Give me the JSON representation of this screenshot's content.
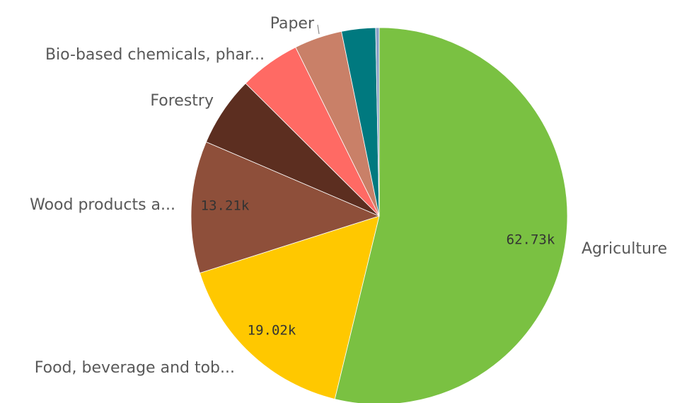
{
  "chart_data": {
    "type": "pie",
    "title": "",
    "start_angle_deg": 0,
    "direction": "clockwise",
    "slices": [
      {
        "name": "Agriculture",
        "value": 62730,
        "value_label": "62.73k",
        "color": "#7ac142"
      },
      {
        "name": "Food, beverage and tob...",
        "value": 19020,
        "value_label": "19.02k",
        "color": "#ffc800"
      },
      {
        "name": "Wood products a...",
        "value": 13210,
        "value_label": "13.21k",
        "color": "#8e4f3a"
      },
      {
        "name": "Forestry",
        "value": 7000,
        "value_label": "",
        "color": "#5c2e20"
      },
      {
        "name": "Bio-based chemicals, phar...",
        "value": 6100,
        "value_label": "",
        "color": "#ff6a64"
      },
      {
        "name": "",
        "value": 4800,
        "value_label": "",
        "color": "#c98068"
      },
      {
        "name": "",
        "value": 3400,
        "value_label": "",
        "color": "#00797f"
      },
      {
        "name": "Paper",
        "value": 350,
        "value_label": "",
        "color": "#8aa0c8"
      }
    ]
  }
}
